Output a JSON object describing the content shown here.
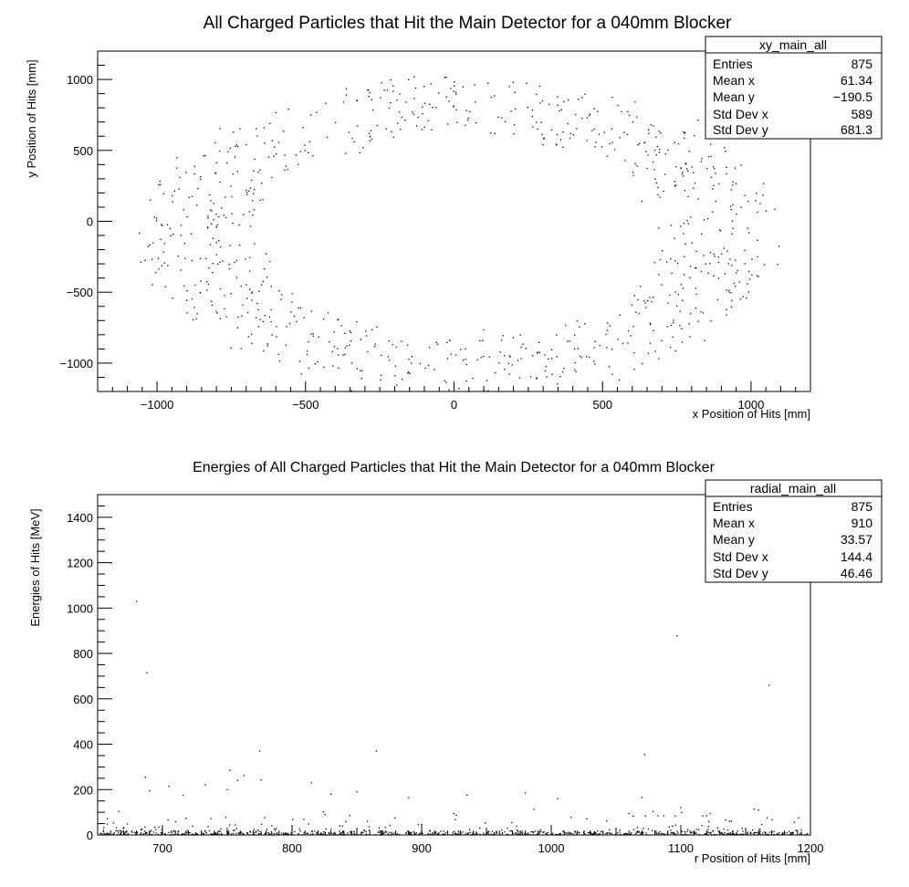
{
  "chart_data": [
    {
      "type": "scatter",
      "title": "All Charged Particles that Hit the Main Detector for a 040mm Blocker",
      "xlabel": "x Position of Hits [mm]",
      "ylabel": "y Position of Hits [mm]",
      "xlim": [
        -1200,
        1200
      ],
      "ylim": [
        -1200,
        1200
      ],
      "x_ticks": [
        "−1000",
        "−500",
        "0",
        "500",
        "1000"
      ],
      "y_ticks": [
        "−1000",
        "−500",
        "0",
        "500",
        "1000"
      ],
      "grid": false,
      "legend": "none",
      "stats_box": {
        "name": "xy_main_all",
        "rows": [
          {
            "label": "Entries",
            "value": "875"
          },
          {
            "label": "Mean x",
            "value": "61.34"
          },
          {
            "label": "Mean y",
            "value": "−190.5"
          },
          {
            "label": "Std Dev x",
            "value": "589"
          },
          {
            "label": "Std Dev y",
            "value": "681.3"
          }
        ]
      },
      "description": "875 hits distributed in an elliptical ring centered near (0, -100) with x semi-axis ~700-1000 mm and y semi-axis ~800-1100 mm; empty center.",
      "points": []
    },
    {
      "type": "scatter",
      "title": "Energies of All Charged Particles that Hit the Main Detector for a 040mm Blocker",
      "xlabel": "r Position of Hits [mm]",
      "ylabel": "Energies of Hits [MeV]",
      "xlim": [
        650,
        1200
      ],
      "ylim": [
        0,
        1500
      ],
      "x_ticks": [
        "700",
        "800",
        "900",
        "1000",
        "1100",
        "1200"
      ],
      "y_ticks": [
        "0",
        "200",
        "400",
        "600",
        "800",
        "1000",
        "1200",
        "1400"
      ],
      "grid": false,
      "legend": "none",
      "stats_box": {
        "name": "radial_main_all",
        "rows": [
          {
            "label": "Entries",
            "value": "875"
          },
          {
            "label": "Mean x",
            "value": "910"
          },
          {
            "label": "Mean y",
            "value": "33.57"
          },
          {
            "label": "Std Dev x",
            "value": "144.4"
          },
          {
            "label": "Std Dev y",
            "value": "46.46"
          }
        ]
      },
      "points": [
        [
          680,
          1030
        ],
        [
          688,
          715
        ],
        [
          1097,
          878
        ],
        [
          1168,
          660
        ],
        [
          775,
          370
        ],
        [
          865,
          370
        ],
        [
          1072,
          355
        ],
        [
          752,
          285
        ],
        [
          763,
          262
        ],
        [
          758,
          240
        ],
        [
          733,
          222
        ],
        [
          815,
          230
        ],
        [
          776,
          243
        ],
        [
          687,
          255
        ],
        [
          705,
          215
        ],
        [
          690,
          195
        ],
        [
          716,
          175
        ],
        [
          750,
          200
        ],
        [
          830,
          180
        ],
        [
          850,
          190
        ],
        [
          890,
          165
        ],
        [
          935,
          175
        ],
        [
          980,
          185
        ],
        [
          1005,
          160
        ],
        [
          1070,
          165
        ],
        [
          1100,
          120
        ],
        [
          1160,
          110
        ],
        [
          1120,
          85
        ],
        [
          1060,
          95
        ]
      ]
    }
  ]
}
